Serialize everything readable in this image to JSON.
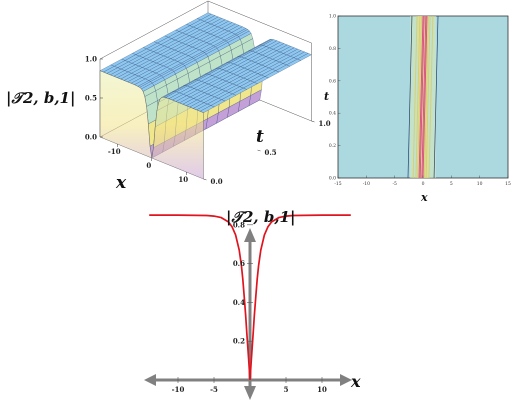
{
  "chart_data": [
    {
      "type": "surface3d",
      "zlabel": "|𝒯2, b,1|",
      "xlabel": "x",
      "ylabel": "t",
      "x_ticks": [
        "-10",
        "0",
        "10"
      ],
      "t_ticks": [
        "0.0",
        "0.5",
        "1.0"
      ],
      "z_ticks": [
        "0.0",
        "0.5",
        "1.0"
      ],
      "xlim": [
        -15,
        15
      ],
      "tlim": [
        0,
        1
      ],
      "zlim": [
        0,
        1
      ],
      "background_level": 0.85,
      "dip_center": 0,
      "dip_min": 0,
      "colors": {
        "surface_top": "#8ec8f0",
        "surface_dip": "#f0e68c",
        "dip_bottom": "#c3a0d8",
        "mesh": "#2a3f6e"
      }
    },
    {
      "type": "contour",
      "xlabel": "x",
      "ylabel": "t",
      "x_ticks": [
        "-15",
        "-10",
        "-5",
        "0",
        "5",
        "10",
        "15"
      ],
      "t_ticks": [
        "0.0",
        "0.2",
        "0.4",
        "0.6",
        "0.8",
        "1.0"
      ],
      "xlim": [
        -15,
        15
      ],
      "ylim": [
        0,
        1
      ],
      "contour_x_offsets": [
        -2.3,
        -1.4,
        -0.9,
        -0.6,
        -0.35,
        -0.15,
        0.15,
        0.35,
        0.6,
        0.9,
        1.4,
        2.3
      ],
      "colors": {
        "background": "#acd9e0",
        "outer_line": "#27406b",
        "mid_line": "#d8cf6a",
        "inner_line": "#d94a7e"
      }
    },
    {
      "type": "line",
      "xlabel": "x",
      "ylabel": "|𝒯2, b,1|",
      "x_ticks": [
        -10,
        -5,
        5,
        10
      ],
      "y_ticks": [
        0.2,
        0.4,
        0.6,
        0.8
      ],
      "xlim": [
        -15,
        15
      ],
      "ylim": [
        0,
        1
      ],
      "series": [
        {
          "x": [
            -14,
            -10,
            -6,
            -5,
            -4,
            -3,
            -2.5,
            -2,
            -1.5,
            -1.2,
            -1,
            -0.8,
            -0.6,
            -0.4,
            -0.2,
            0,
            0.2,
            0.4,
            0.6,
            0.8,
            1,
            1.2,
            1.5,
            2,
            2.5,
            3,
            4,
            5,
            6,
            10,
            14
          ],
          "y": [
            0.85,
            0.85,
            0.848,
            0.845,
            0.837,
            0.815,
            0.79,
            0.748,
            0.67,
            0.59,
            0.52,
            0.43,
            0.33,
            0.22,
            0.11,
            0.0,
            0.11,
            0.22,
            0.33,
            0.43,
            0.52,
            0.59,
            0.67,
            0.748,
            0.79,
            0.815,
            0.837,
            0.845,
            0.848,
            0.85,
            0.85
          ]
        }
      ],
      "colors": {
        "line": "#e0141e",
        "axis": "#808080"
      }
    }
  ]
}
